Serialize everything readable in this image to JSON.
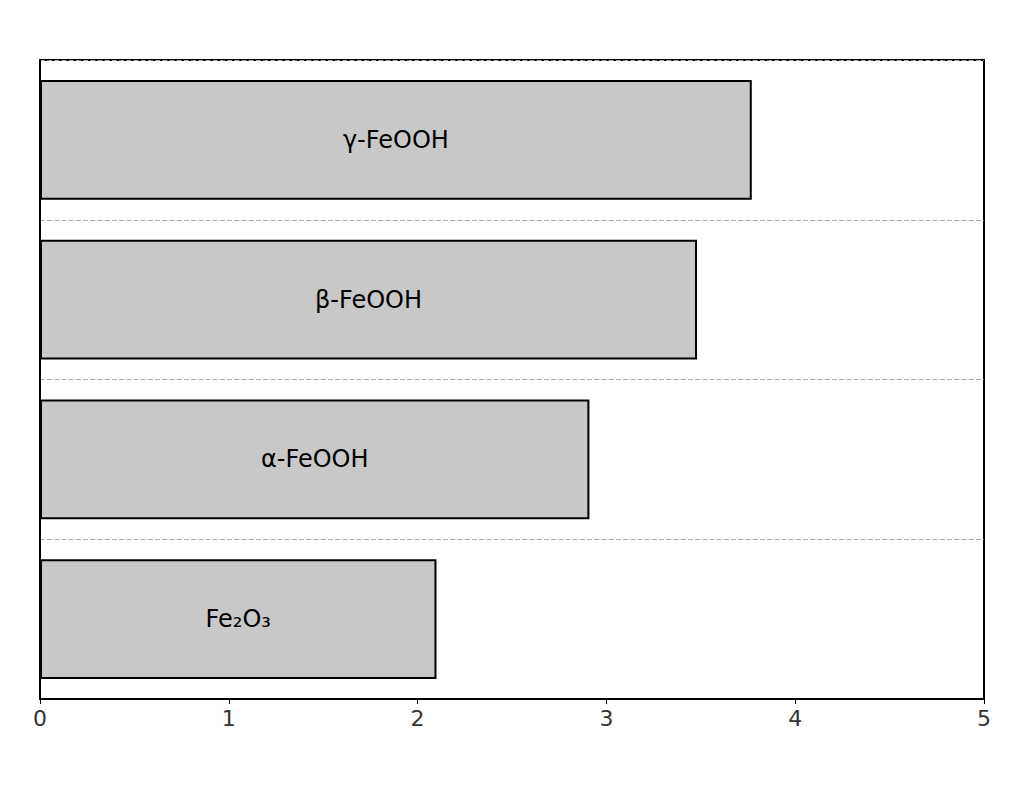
{
  "chart_data": {
    "type": "bar",
    "orientation": "horizontal",
    "categories": [
      "Fe₂O₃",
      "α-FeOOH",
      "β-FeOOH",
      "γ-FeOOH"
    ],
    "values": [
      2.1,
      2.91,
      3.48,
      3.77
    ],
    "color": "#c8c8c8",
    "xlim": [
      0,
      5
    ],
    "xticks": [
      0,
      1,
      2,
      3,
      4,
      5
    ],
    "grid": true,
    "tick_labels": "x"
  }
}
